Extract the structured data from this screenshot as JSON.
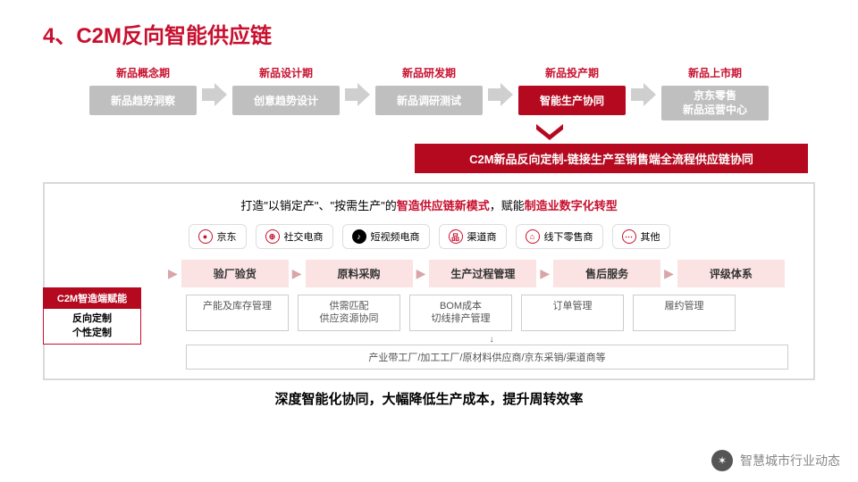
{
  "title": "4、C2M反向智能供应链",
  "phases": [
    {
      "label": "新品概念期",
      "box": "新品趋势洞察",
      "hl": false,
      "multi": false
    },
    {
      "label": "新品设计期",
      "box": "创意趋势设计",
      "hl": false,
      "multi": false
    },
    {
      "label": "新品研发期",
      "box": "新品调研测试",
      "hl": false,
      "multi": false
    },
    {
      "label": "新品投产期",
      "box": "智能生产协同",
      "hl": true,
      "multi": false
    },
    {
      "label": "新品上市期",
      "box": "京东零售\n新品运营中心",
      "hl": false,
      "multi": true
    }
  ],
  "banner": "C2M新品反向定制-链接生产至销售端全流程供应链协同",
  "subtitle_parts": [
    "打造\"以销定产\"、\"按需生产\"的",
    "智造供应链新模式",
    "，赋能",
    "制造业数字化转型"
  ],
  "channels": [
    {
      "icon": "●",
      "label": "京东"
    },
    {
      "icon": "⊕",
      "label": "社交电商"
    },
    {
      "icon": "♪",
      "label": "短视频电商",
      "fill": true
    },
    {
      "icon": "品",
      "label": "渠道商"
    },
    {
      "icon": "⌂",
      "label": "线下零售商"
    },
    {
      "icon": "⋯",
      "label": "其他"
    }
  ],
  "left_tag": {
    "head": "C2M智造端赋能",
    "body1": "反向定制",
    "body2": "个性定制"
  },
  "pink_steps": [
    "验厂验货",
    "原料采购",
    "生产过程管理",
    "售后服务",
    "评级体系"
  ],
  "gray_boxes": [
    "产能及库存管理",
    "供需匹配\n供应资源协同",
    "BOM成本\n切线排产管理",
    "订单管理",
    "履约管理"
  ],
  "bottom_bar": "产业带工厂/加工工厂/原材料供应商/京东采销/渠道商等",
  "footer": "深度智能化协同，大幅降低生产成本，提升周转效率",
  "watermark": "智慧城市行业动态",
  "colors": {
    "brand": "#c8102e",
    "brand_dark": "#b5091f",
    "gray": "#bfbfbf",
    "pink": "#fbe3e4"
  }
}
